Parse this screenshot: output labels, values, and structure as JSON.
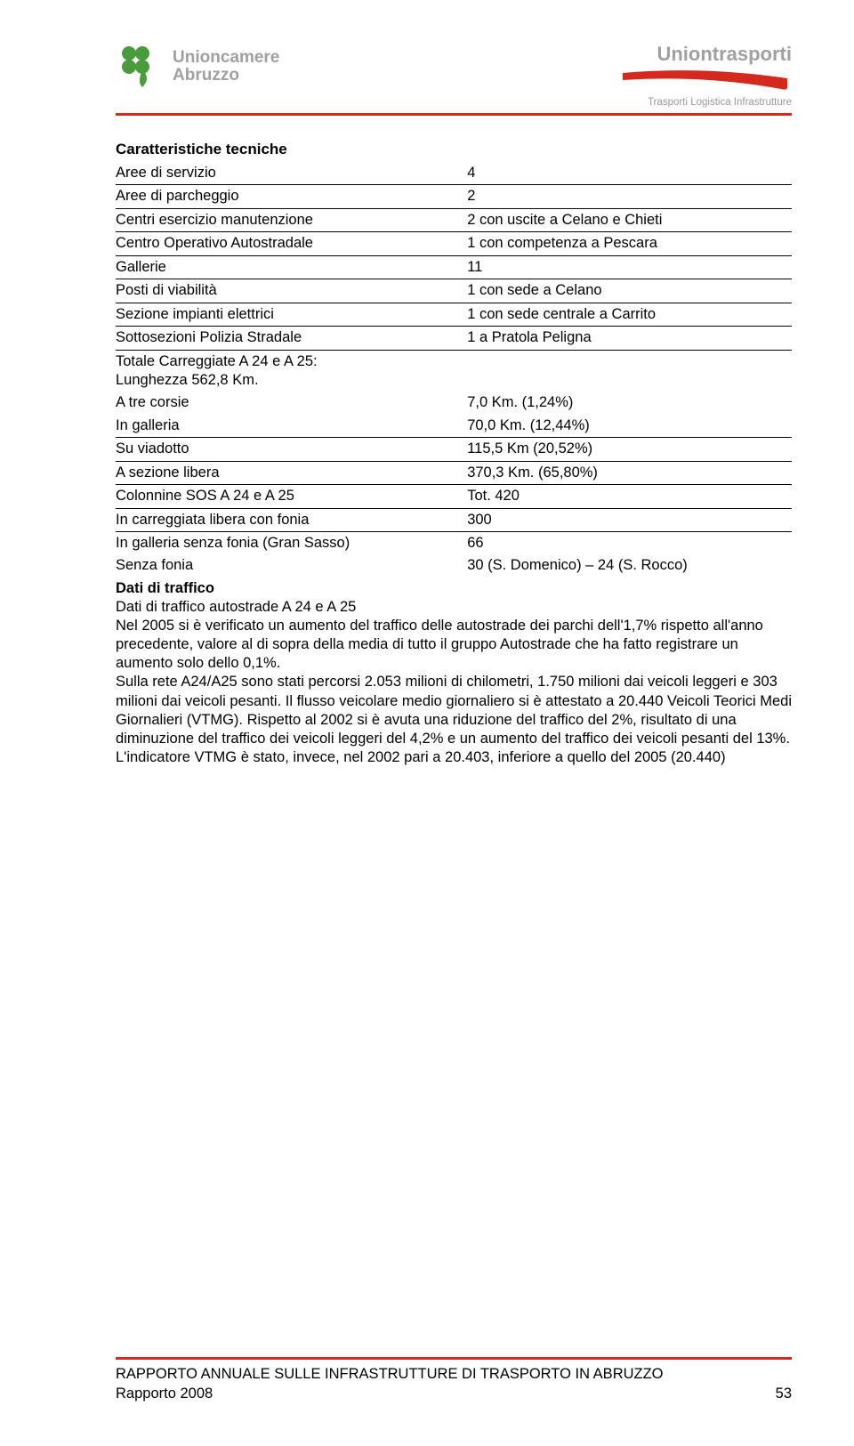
{
  "header": {
    "left_logo_text_1": "Unioncamere",
    "left_logo_text_2": "Abruzzo",
    "right_title": "Uniontrasporti",
    "right_sub": "Trasporti Logistica Infrastrutture",
    "logo_green": "#4a9b3c",
    "swoosh_red": "#d4291e",
    "rule_color": "#d4291e"
  },
  "section_title": "Caratteristiche tecniche",
  "rows": [
    {
      "label": "Aree di servizio",
      "value": "4"
    },
    {
      "label": "Aree di parcheggio",
      "value": "2"
    },
    {
      "label": "Centri esercizio manutenzione",
      "value": "2 con uscite a Celano e Chieti"
    },
    {
      "label": "Centro Operativo Autostradale",
      "value": "1 con competenza a Pescara"
    },
    {
      "label": "Gallerie",
      "value": "11"
    },
    {
      "label": "Posti di viabilità",
      "value": "1 con sede a Celano"
    },
    {
      "label": "Sezione impianti elettrici",
      "value": "1 con sede centrale a Carrito"
    },
    {
      "label": "Sottosezioni Polizia Stradale",
      "value": "1 a Pratola Peligna"
    },
    {
      "label": "Totale Carreggiate A 24 e A 25:\nLunghezza 562,8 Km.",
      "value": ""
    },
    {
      "label": "A tre corsie",
      "value": "7,0 Km. (1,24%)"
    },
    {
      "label": "In galleria",
      "value": "70,0 Km. (12,44%)"
    },
    {
      "label": "Su viadotto",
      "value": "115,5 Km (20,52%)"
    },
    {
      "label": "A sezione libera",
      "value": "370,3 Km. (65,80%)"
    },
    {
      "label": "Colonnine SOS A 24 e A 25",
      "value": "Tot. 420"
    },
    {
      "label": "In carreggiata libera con fonia",
      "value": "300"
    },
    {
      "label": "In galleria senza fonia (Gran Sasso)",
      "value": "66"
    },
    {
      "label": "Senza fonia",
      "value": "30 (S. Domenico) – 24 (S. Rocco)"
    }
  ],
  "traffic_title": "Dati di traffico",
  "traffic_subtitle": "Dati di traffico autostrade A 24 e A 25",
  "body": "Nel 2005 si è verificato un aumento del traffico delle autostrade dei parchi dell'1,7% rispetto all'anno precedente, valore al di sopra della media di tutto il gruppo Autostrade che ha fatto registrare un aumento solo dello 0,1%.\nSulla rete A24/A25 sono stati percorsi 2.053 milioni di chilometri, 1.750 milioni dai veicoli leggeri e 303 milioni dai veicoli pesanti. Il flusso veicolare medio giornaliero si è attestato a 20.440 Veicoli Teorici Medi Giornalieri (VTMG). Rispetto al 2002 si è avuta una riduzione del traffico del 2%, risultato di una diminuzione del traffico dei veicoli leggeri del 4,2% e un aumento del traffico dei veicoli pesanti del 13%.\nL'indicatore VTMG è stato, invece, nel 2002 pari a 20.403, inferiore a quello del 2005 (20.440)",
  "footer": {
    "line1": "RAPPORTO ANNUALE SULLE INFRASTRUTTURE DI TRASPORTO IN ABRUZZO",
    "line2": "Rapporto 2008",
    "page": "53"
  }
}
